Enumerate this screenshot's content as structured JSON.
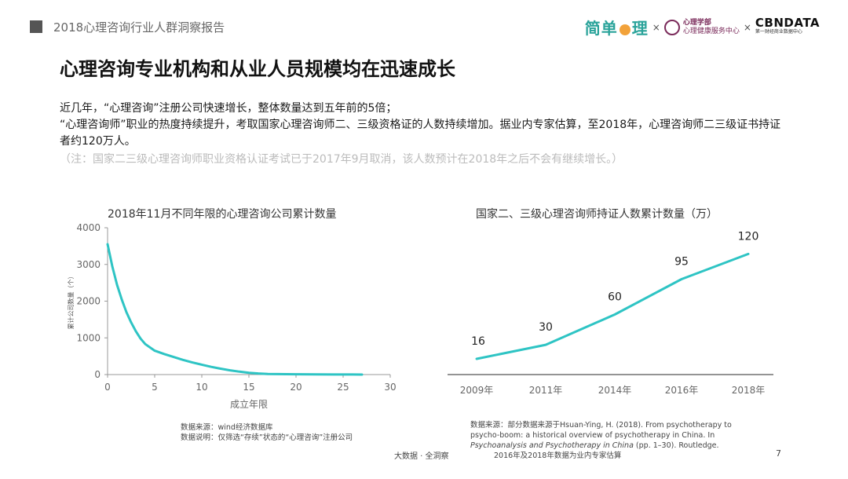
{
  "header": {
    "report_title": "2018心理咨询行业人群洞察报告",
    "logos": {
      "jd_left": "简单",
      "jd_right": "理",
      "separator": "×",
      "pku_line1": "心理学部",
      "pku_line2": "心理健康服务中心",
      "cbn": "CBNDATA",
      "cbn_sub": "第一财经商业数据中心"
    }
  },
  "headline": "心理咨询专业机构和从业人员规模均在迅速成长",
  "body": {
    "line1": "近几年，“心理咨询”注册公司快速增长，整体数量达到五年前的5倍；",
    "line2": "“心理咨询师”职业的热度持续提升，考取国家心理咨询师二、三级资格证的人数持续增加。据业内专家估算，至2018年，心理咨询师二三级证书持证者约120万人。",
    "note": "（注：国家二三级心理咨询师职业资格认证考试已于2017年9月取消，该人数预计在2018年之后不会有继续增长。）"
  },
  "colors": {
    "series": "#2ec4c4",
    "axis": "#999999"
  },
  "chart_data": [
    {
      "type": "line",
      "title": "2018年11月不同年限的心理咨询公司累计数量",
      "xlabel": "成立年限",
      "ylabel": "累计公司数量（个）",
      "xlim": [
        0,
        30
      ],
      "ylim": [
        0,
        4000
      ],
      "xticks": [
        "0",
        "5",
        "10",
        "15",
        "20",
        "25",
        "30"
      ],
      "yticks": [
        "0",
        "1000",
        "2000",
        "3000",
        "4000"
      ],
      "grid": false,
      "x": [
        0,
        0.5,
        1,
        1.5,
        2,
        2.5,
        3,
        3.5,
        4,
        5,
        6,
        7,
        8,
        9,
        10,
        11,
        12,
        13,
        14,
        15,
        16,
        17,
        18,
        20,
        22,
        24,
        26,
        27
      ],
      "y": [
        3550,
        2950,
        2450,
        2050,
        1700,
        1420,
        1180,
        980,
        830,
        650,
        560,
        480,
        400,
        330,
        270,
        210,
        160,
        115,
        80,
        50,
        30,
        18,
        12,
        8,
        5,
        3,
        2,
        1
      ],
      "source_line1": "数据来源：wind经济数据库",
      "source_line2": "数据说明：仅筛选“存续”状态的“心理咨询”注册公司"
    },
    {
      "type": "line",
      "title": "国家二、三级心理咨询师持证人数累计数量（万）",
      "categories": [
        "2009年",
        "2011年",
        "2014年",
        "2016年",
        "2018年"
      ],
      "values": [
        16,
        30,
        60,
        95,
        120
      ],
      "data_labels": [
        "16",
        "30",
        "60",
        "95",
        "120"
      ],
      "ylim": [
        0,
        130
      ],
      "grid": false,
      "source_line1": "数据来源：部分数据来源于Hsuan-Ying, H. (2018). From psychotherapy to",
      "source_line2": "psycho-boom: a historical overview of psychotherapy in China. In",
      "source_line3_italic": "Psychoanalysis and Psychotherapy in China",
      "source_line3_rest": " (pp. 1–30). Routledge.",
      "source_line4": "2016年及2018年数据为业内专家估算"
    }
  ],
  "footer": {
    "brand": "大数据 · 全洞察",
    "page_number": "7"
  }
}
